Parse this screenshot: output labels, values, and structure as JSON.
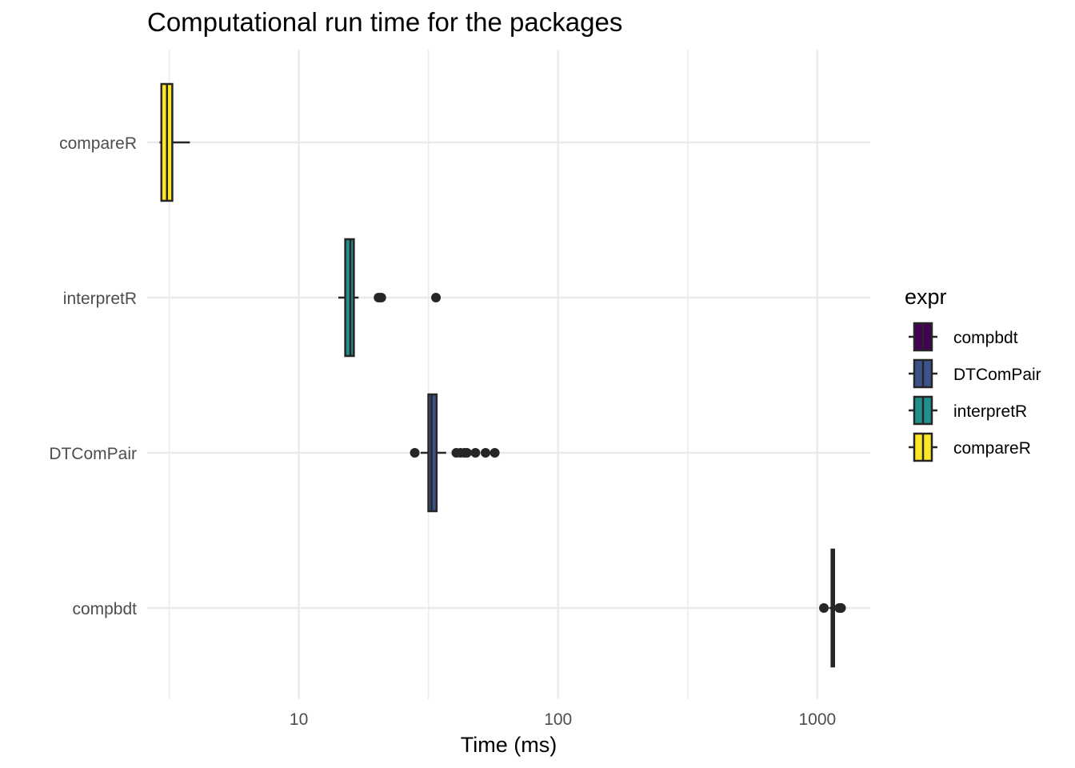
{
  "chart_data": {
    "type": "boxplot",
    "title": "Computational run time for the packages",
    "xlabel": "Time (ms)",
    "ylabel": "",
    "x_scale": "log10",
    "xlim": [
      2.6,
      1600
    ],
    "x_ticks": [
      10,
      100,
      1000
    ],
    "x_tick_labels": [
      "10",
      "100",
      "1000"
    ],
    "grid": true,
    "legend": {
      "title": "expr",
      "position": "right",
      "entries": [
        "compbdt",
        "DTComPair",
        "interpretR",
        "compareR"
      ]
    },
    "categories": [
      "compareR",
      "interpretR",
      "DTComPair",
      "compbdt"
    ],
    "series": [
      {
        "name": "compareR",
        "color": "#FDE725",
        "whisker_low": 2.9,
        "q1": 2.95,
        "median": 3.1,
        "q3": 3.25,
        "whisker_high": 3.8,
        "outliers": []
      },
      {
        "name": "interpretR",
        "color": "#21908C",
        "whisker_low": 14.2,
        "q1": 15.1,
        "median": 15.8,
        "q3": 16.3,
        "whisker_high": 17.0,
        "outliers": [
          20.3,
          20.8,
          33.8
        ]
      },
      {
        "name": "DTComPair",
        "color": "#3B528B",
        "whisker_low": 29.5,
        "q1": 31.6,
        "median": 32.5,
        "q3": 34.0,
        "whisker_high": 37.0,
        "outliers": [
          28.0,
          40.5,
          42.0,
          43.5,
          44.5,
          48.0,
          52.5,
          57.0
        ]
      },
      {
        "name": "compbdt",
        "color": "#440154",
        "whisker_low": 1110,
        "q1": 1135,
        "median": 1145,
        "q3": 1160,
        "whisker_high": 1180,
        "outliers": [
          1060,
          1215,
          1235
        ]
      }
    ]
  }
}
